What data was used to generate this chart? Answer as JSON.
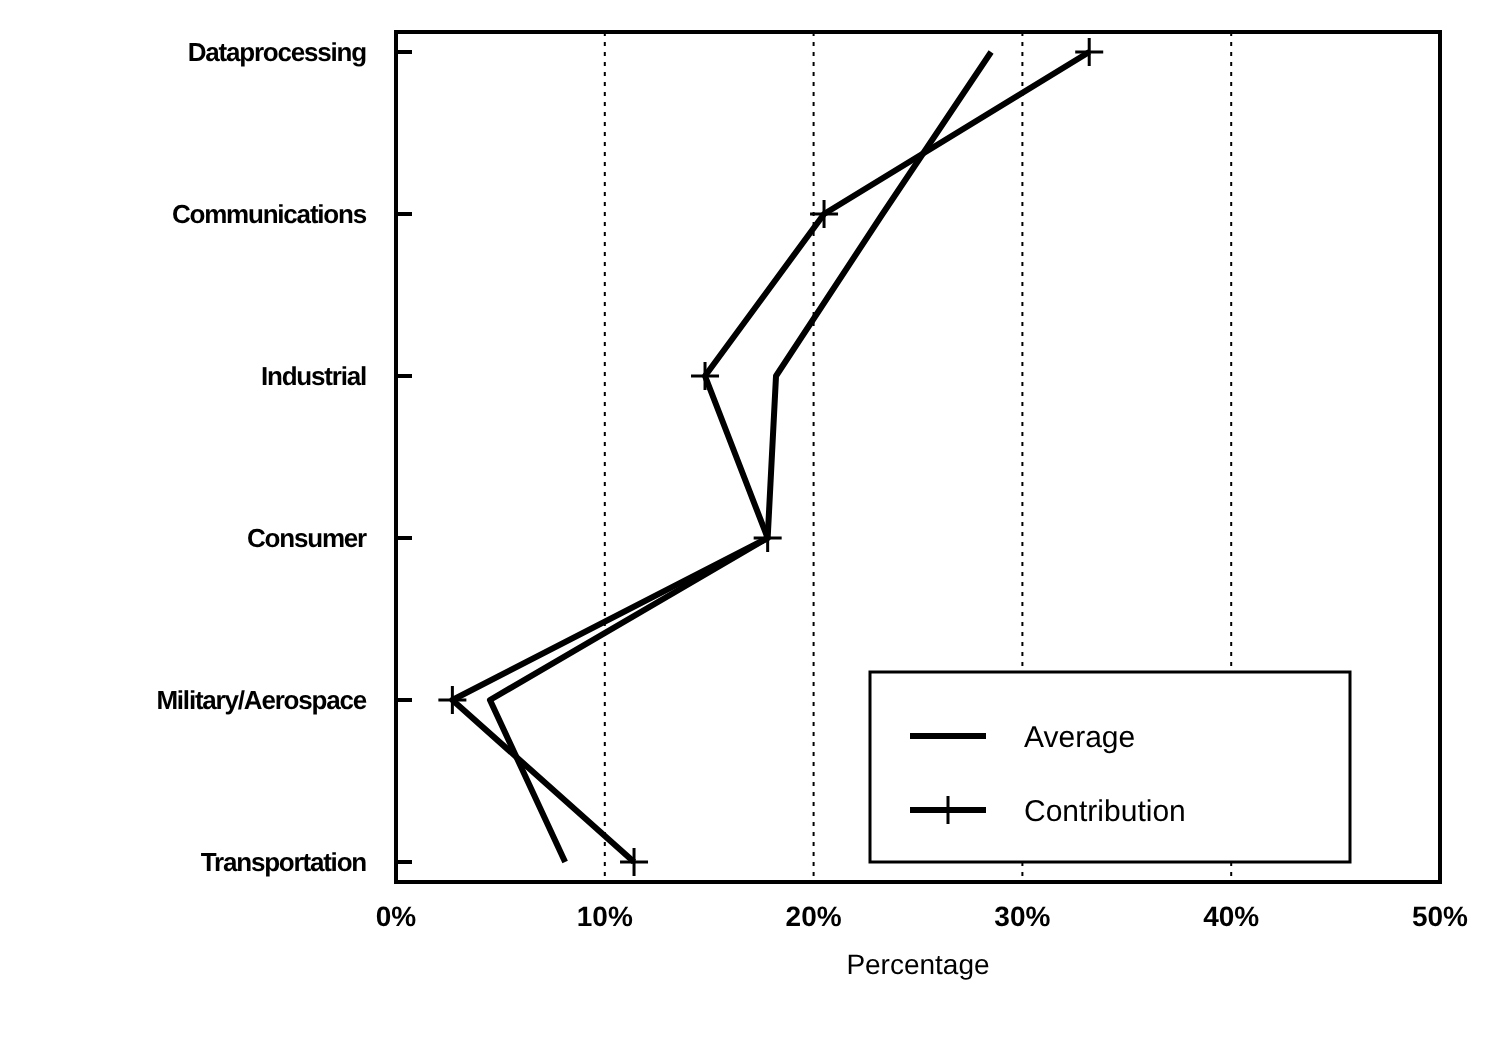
{
  "chart_data": {
    "type": "line",
    "orientation": "horizontal",
    "xlabel": "Percentage",
    "categories": [
      "Dataprocessing",
      "Communications",
      "Industrial",
      "Consumer",
      "Military/Aerospace",
      "Transportation"
    ],
    "series": [
      {
        "name": "Average",
        "color": "#000000",
        "marker": "none",
        "values": [
          28.5,
          23.3,
          18.2,
          17.8,
          4.5,
          8.1
        ]
      },
      {
        "name": "Contribution",
        "color": "#000000",
        "marker": "cross",
        "values": [
          33.2,
          20.5,
          14.8,
          17.8,
          2.7,
          11.4
        ]
      }
    ],
    "xlim": [
      0,
      50
    ],
    "xticks": [
      {
        "value": 0,
        "label": "0%"
      },
      {
        "value": 10,
        "label": "10%"
      },
      {
        "value": 20,
        "label": "20%"
      },
      {
        "value": 30,
        "label": "30%"
      },
      {
        "value": 40,
        "label": "40%"
      },
      {
        "value": 50,
        "label": "50%"
      }
    ],
    "grid": "x",
    "legend": "bottom right",
    "line_style": "solid"
  }
}
